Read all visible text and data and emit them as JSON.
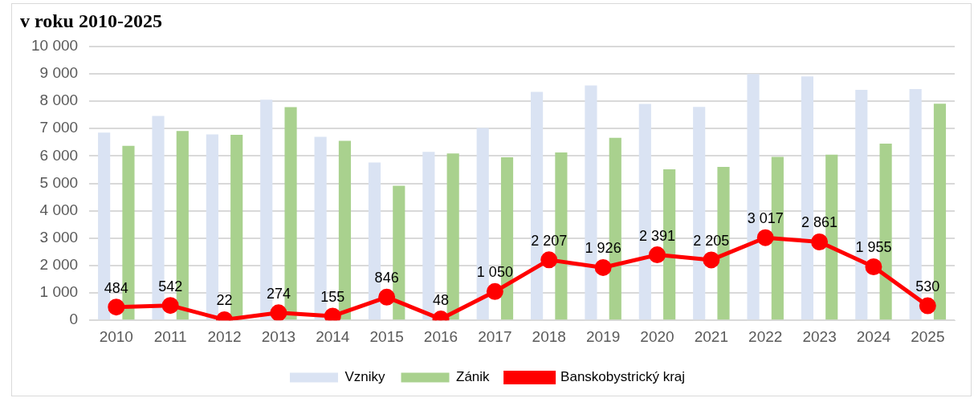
{
  "chart_data": {
    "type": "bar",
    "title": "v roku 2010-2025",
    "categories": [
      "2010",
      "2011",
      "2012",
      "2013",
      "2014",
      "2015",
      "2016",
      "2017",
      "2018",
      "2019",
      "2020",
      "2021",
      "2022",
      "2023",
      "2024",
      "2025"
    ],
    "series": [
      {
        "name": "Vzniky",
        "color": "#dae3f3",
        "values": [
          6850,
          7460,
          6790,
          8050,
          6700,
          5760,
          6150,
          7020,
          8340,
          8570,
          7900,
          7790,
          8990,
          8900,
          8410,
          8440
        ]
      },
      {
        "name": "Zánik",
        "color": "#a9d18e",
        "values": [
          6370,
          6910,
          6770,
          7780,
          6550,
          4910,
          6090,
          5950,
          6130,
          6660,
          5510,
          5600,
          5970,
          6050,
          6450,
          7910
        ]
      },
      {
        "name": "Banskobystrický kraj",
        "type": "line",
        "color": "#ff0000",
        "marker": "circle",
        "values": [
          484,
          542,
          22,
          274,
          155,
          846,
          48,
          1050,
          2207,
          1926,
          2391,
          2205,
          3017,
          2861,
          1955,
          530
        ],
        "value_labels": [
          "484",
          "542",
          "22",
          "274",
          "155",
          "846",
          "48",
          "1 050",
          "2 207",
          "1 926",
          "2 391",
          "2 205",
          "3 017",
          "2 861",
          "1 955",
          "530"
        ]
      }
    ],
    "ylim": [
      0,
      10000
    ],
    "yticks": [
      0,
      {
        "value": 1000,
        "label": "1 000"
      },
      {
        "value": 2000,
        "label": "2 000"
      },
      {
        "value": 3000,
        "label": "3 000"
      },
      {
        "value": 4000,
        "label": "4 000"
      },
      {
        "value": 5000,
        "label": "5 000"
      },
      {
        "value": 6000,
        "label": "6 000"
      },
      {
        "value": 7000,
        "label": "7 000"
      },
      {
        "value": 8000,
        "label": "8 000"
      },
      {
        "value": 9000,
        "label": "9 000"
      },
      {
        "value": 10000,
        "label": "10 000"
      }
    ],
    "grid": "y",
    "legend": "bottom"
  }
}
